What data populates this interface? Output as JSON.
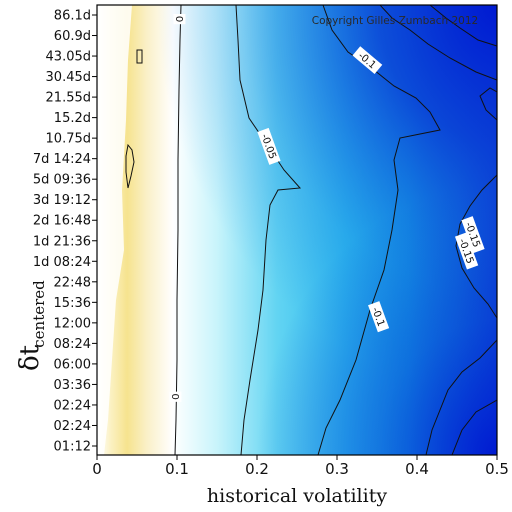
{
  "chart_data": {
    "type": "heatmap",
    "xlabel": "historical volatility",
    "ylabel": "δt",
    "ylabel_subscript": "centered",
    "xlim": [
      0,
      0.5
    ],
    "x_ticks": [
      "0",
      "0.1",
      "0.2",
      "0.3",
      "0.4",
      "0.5"
    ],
    "y_ticks": [
      "01:12",
      "02:24",
      "02:24",
      "03:36",
      "06:00",
      "08:24",
      "12:00",
      "15:36",
      "22:48",
      "1d 08:24",
      "1d 21:36",
      "2d 16:48",
      "3d 19:12",
      "5d 09:36",
      "7d 14:24",
      "10.75d",
      "15.2d",
      "21.55d",
      "30.45d",
      "43.05d",
      "60.9d",
      "86.1d"
    ],
    "annotation": "Copyright Gilles Zumbach 2012",
    "colormap": {
      "positive": "#f6e58c",
      "zero": "#ffffff",
      "negative": "#0018d0"
    },
    "contour_levels": [
      {
        "level": 0,
        "label": "0"
      },
      {
        "level": -0.05,
        "label": "-0.05"
      },
      {
        "level": -0.1,
        "label": "-0.1"
      },
      {
        "level": -0.15,
        "label": "-0.15"
      }
    ],
    "contour_labels": [
      {
        "text": "0",
        "x": 0.103,
        "row": 20.8
      },
      {
        "text": "0",
        "x": 0.098,
        "row": 2.4
      },
      {
        "text": "-0.05",
        "x": 0.215,
        "row": 14.6
      },
      {
        "text": "-0.1",
        "x": 0.338,
        "row": 18.8
      },
      {
        "text": "-0.1",
        "x": 0.352,
        "row": 6.3
      },
      {
        "text": "-0.15",
        "x": 0.47,
        "row": 10.3
      },
      {
        "text": "-0.15",
        "x": 0.462,
        "row": 9.5
      }
    ]
  }
}
